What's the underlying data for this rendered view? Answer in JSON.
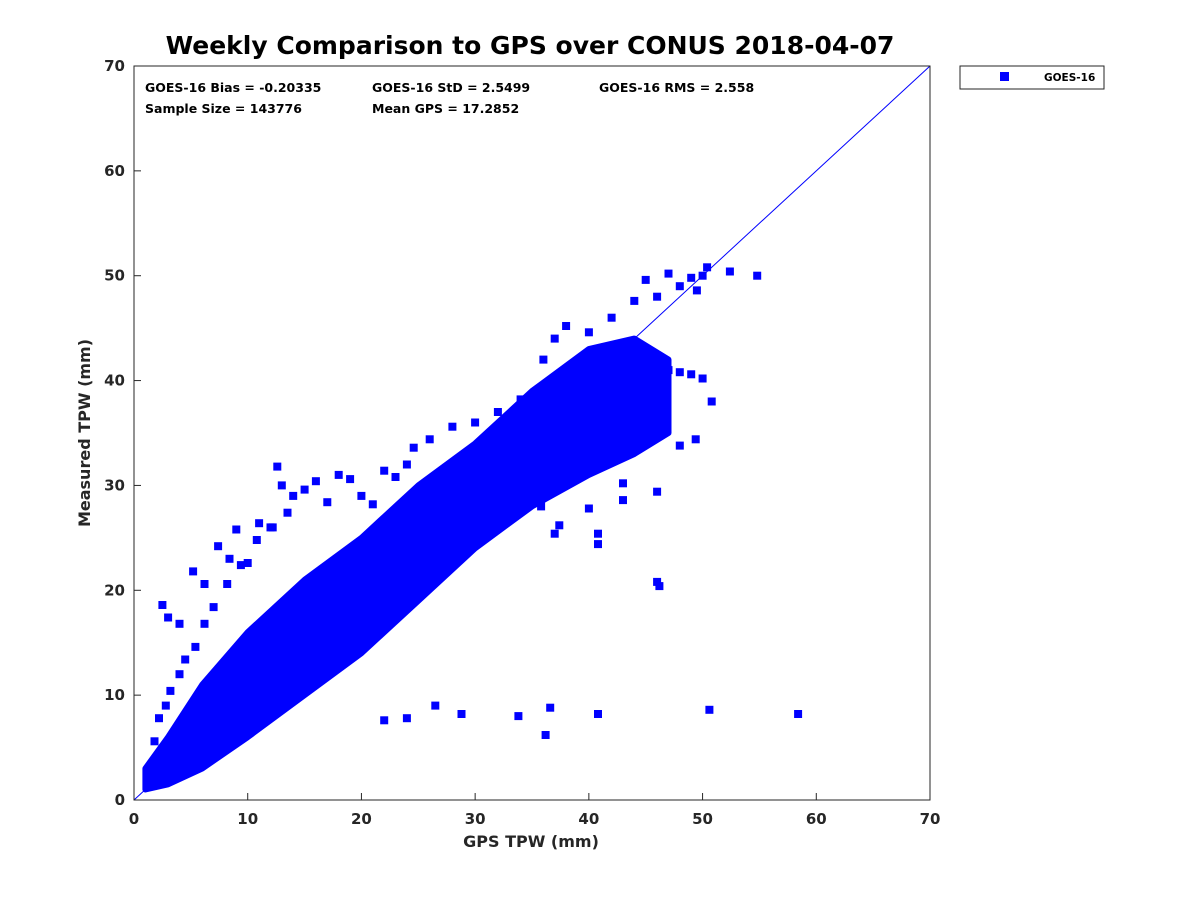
{
  "chart_data": {
    "type": "scatter",
    "title": "Weekly Comparison to GPS over CONUS 2018-04-07",
    "xlabel": "GPS TPW (mm)",
    "ylabel": "Measured TPW (mm)",
    "xlim": [
      0,
      70
    ],
    "ylim": [
      0,
      70
    ],
    "xticks": [
      "0",
      "10",
      "20",
      "30",
      "40",
      "50",
      "60",
      "70"
    ],
    "yticks": [
      "0",
      "10",
      "20",
      "30",
      "40",
      "50",
      "60",
      "70"
    ],
    "grid": false,
    "legend_position": "outside-top-right",
    "marker_color": "#0000ff",
    "marker": "square",
    "stats": {
      "bias": "GOES-16 Bias = -0.20335",
      "std": "GOES-16 StD = 2.5499",
      "rms": "GOES-16 RMS = 2.558",
      "sample_size": "Sample Size = 143776",
      "mean_gps": "Mean GPS = 17.2852"
    },
    "reference_line": {
      "x": [
        0,
        70
      ],
      "y": [
        0,
        70
      ]
    },
    "series": [
      {
        "name": "GOES-16",
        "core_band": {
          "x": [
            1,
            3,
            6,
            10,
            15,
            20,
            25,
            30,
            35,
            40,
            44,
            47
          ],
          "y_low": [
            1,
            1.5,
            3,
            6,
            10,
            14,
            19,
            24,
            28,
            31,
            33,
            35
          ],
          "y_high": [
            3,
            6,
            11,
            16,
            21,
            25,
            30,
            34,
            39,
            43,
            44,
            42
          ]
        },
        "x": [
          1.2,
          2.0,
          2.4,
          3.0,
          3.8,
          4.6,
          5.2,
          6.0,
          6.6,
          7.4,
          8.0,
          8.8,
          9.6,
          10.4,
          11.2,
          12.0,
          13.0,
          14.0,
          15.0,
          16.0,
          17.0,
          18.0,
          19.0,
          20.0,
          21.0,
          22.0,
          23.0,
          24.0,
          25.0,
          26.0,
          27.0,
          28.0,
          29.0,
          30.0,
          31.0,
          32.0,
          33.0,
          34.0,
          35.0,
          36.0,
          37.0,
          38.0,
          39.0,
          40.0,
          41.0,
          42.0,
          43.0,
          44.0,
          45.0,
          46.0,
          47.0,
          48.0,
          49.0,
          50.0,
          1.8,
          2.2,
          2.8,
          3.2,
          4.0,
          4.5,
          5.4,
          6.2,
          7.0,
          8.2,
          9.4,
          10.8,
          12.2,
          13.5,
          2.5,
          3.0,
          4.0,
          5.2,
          6.2,
          7.4,
          8.4,
          9.0,
          10.0,
          11.0,
          12.0,
          12.6,
          13.0,
          14.0,
          15.0,
          16.0,
          17.0,
          18.0,
          19.0,
          20.0,
          21.0,
          22.0,
          23.0,
          24.0,
          24.6,
          26.0,
          28.0,
          30.0,
          32.0,
          34.0,
          36.0,
          37.0,
          38.0,
          40.0,
          42.0,
          44.0,
          45.0,
          46.0,
          47.0,
          48.0,
          49.0,
          49.5,
          50.0,
          50.4,
          52.4,
          54.8,
          35.8,
          37.4,
          40.0,
          40.8,
          43.0,
          46.0,
          48.0,
          49.4,
          50.8,
          43.0,
          46.2,
          28.0,
          31.0,
          34.0,
          37.0,
          40.8,
          46.0,
          22.0,
          24.0,
          26.5,
          28.8,
          33.8,
          36.2,
          36.6,
          40.8,
          50.6,
          58.4
        ],
        "y": [
          1.6,
          2.0,
          3.4,
          2.6,
          4.4,
          4.0,
          6.2,
          5.4,
          8.4,
          7.2,
          9.6,
          8.8,
          11.6,
          10.4,
          13.2,
          12.0,
          14.0,
          15.6,
          16.4,
          17.6,
          18.2,
          19.4,
          20.2,
          21.4,
          22.0,
          23.2,
          24.0,
          25.2,
          26.0,
          27.2,
          27.8,
          29.0,
          29.6,
          30.8,
          31.2,
          32.4,
          33.0,
          34.2,
          34.6,
          35.8,
          36.2,
          37.4,
          37.8,
          38.6,
          39.2,
          40.0,
          40.6,
          41.4,
          41.2,
          40.0,
          41.0,
          40.8,
          40.6,
          40.2,
          5.6,
          7.8,
          9.0,
          10.4,
          12.0,
          13.4,
          14.6,
          16.8,
          18.4,
          20.6,
          22.4,
          24.8,
          26.0,
          27.4,
          18.6,
          17.4,
          16.8,
          21.8,
          20.6,
          24.2,
          23.0,
          25.8,
          22.6,
          26.4,
          26.0,
          31.8,
          30.0,
          29.0,
          29.6,
          30.4,
          28.4,
          31.0,
          30.6,
          29.0,
          28.2,
          31.4,
          30.8,
          32.0,
          33.6,
          34.4,
          35.6,
          36.0,
          37.0,
          38.2,
          42.0,
          44.0,
          45.2,
          44.6,
          46.0,
          47.6,
          49.6,
          48.0,
          50.2,
          49.0,
          49.8,
          48.6,
          50.0,
          50.8,
          50.4,
          50.0,
          28.0,
          26.2,
          27.8,
          25.4,
          28.6,
          29.4,
          33.8,
          34.4,
          38.0,
          30.2,
          20.4,
          31.0,
          30.4,
          30.0,
          25.4,
          24.4,
          20.8,
          7.6,
          7.8,
          9.0,
          8.2,
          8.0,
          6.2,
          8.8,
          8.2,
          8.6,
          8.2
        ]
      }
    ]
  }
}
